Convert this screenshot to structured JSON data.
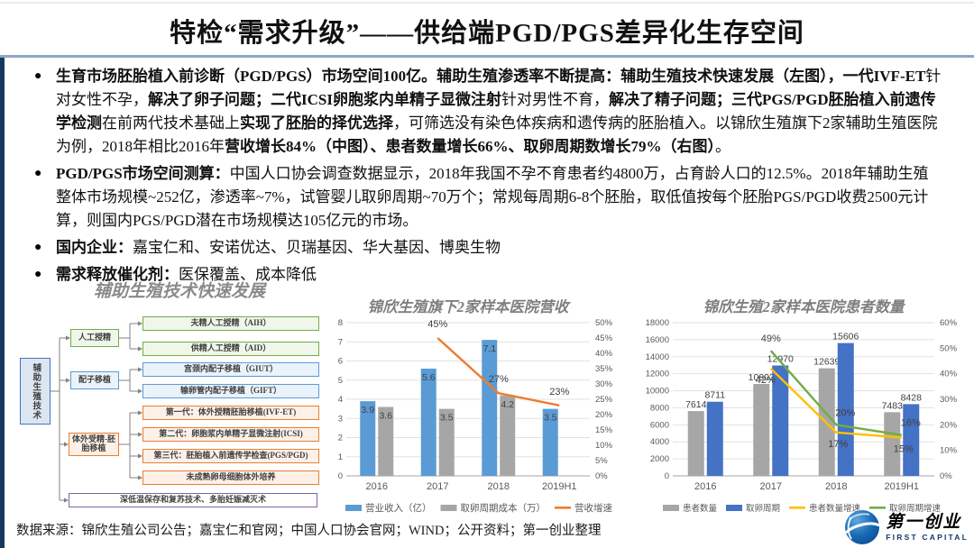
{
  "slide": {
    "title": "特检“需求升级”——供给端PGD/PGS差异化生存空间",
    "divider_color": "#8CA6C9",
    "sidebar_color": "#17375E"
  },
  "bullets": [
    {
      "segments": [
        {
          "t": "生育市场胚胎植入前诊断（PGD/PGS）市场空间100亿。辅助生殖渗透率不断提高：辅助生殖技术快速发展（左图），一代IVF-ET",
          "b": true
        },
        {
          "t": "针对女性不孕，",
          "b": false
        },
        {
          "t": "解决了卵子问题；二代ICSI卵胞浆内单精子显微注射",
          "b": true
        },
        {
          "t": "针对男性不育，",
          "b": false
        },
        {
          "t": "解决了精子问题；三代PGS/PGD胚胎植入前遗传学检测",
          "b": true
        },
        {
          "t": "在前两代技术基础上",
          "b": false
        },
        {
          "t": "实现了胚胎的择优选择",
          "b": true
        },
        {
          "t": "，可筛选没有染色体疾病和遗传病的胚胎植入。以锦欣生殖旗下2家辅助生殖医院为例，2018年相比2016年",
          "b": false
        },
        {
          "t": "营收增长84%（中图）、患者数量增长66%、取卵周期数增长79%（右图）",
          "b": true
        },
        {
          "t": "。",
          "b": false
        }
      ]
    },
    {
      "segments": [
        {
          "t": "PGD/PGS市场空间测算：",
          "b": true
        },
        {
          "t": "中国人口协会调查数据显示，2018年我国不孕不育患者约4800万，占育龄人口的12.5%。2018年辅助生殖整体市场规模~252亿，渗透率~7%，试管婴儿取卵周期~70万个；常规每周期6-8个胚胎，取低值按每个胚胎PGS/PGD收费2500元计算，则国内PGS/PGD潜在市场规模达105亿元的市场。",
          "b": false
        }
      ]
    },
    {
      "segments": [
        {
          "t": "国内企业：",
          "b": true
        },
        {
          "t": "嘉宝仁和、安诺优达、贝瑞基因、华大基因、博奥生物",
          "b": false
        }
      ]
    },
    {
      "segments": [
        {
          "t": "需求释放催化剂：",
          "b": true
        },
        {
          "t": "医保覆盖、成本降低",
          "b": false
        }
      ]
    }
  ],
  "diagram": {
    "title": "辅助生殖技术快速发展",
    "root": "辅助生殖技术",
    "branches": [
      {
        "label": "人工授精",
        "color": "green",
        "children": [
          "夫精人工授精（AIH）",
          "供精人工授精（AID）"
        ]
      },
      {
        "label": "配子移植",
        "color": "blue",
        "children": [
          "宫颈内配子移植（GIUT）",
          "输卵管内配子移植（GIFT）"
        ]
      },
      {
        "label": "体外受精-胚胎移植",
        "color": "orange",
        "children": [
          "第一代：体外授精胚胎移植(IVF-ET)",
          "第二代：卵胞浆内单精子显微注射(ICSI)",
          "第三代：胚胎植入前遗传学检查(PGS/PGD)",
          "未成熟卵母细胞体外培养"
        ]
      }
    ],
    "bottom": "深低温保存和复苏技术、多胎妊娠减灭术"
  },
  "chart_data": [
    {
      "type": "bar",
      "title": "锦欣生殖旗下2家样本医院营收",
      "categories": [
        "2016",
        "2017",
        "2018",
        "2019H1"
      ],
      "bar_series": [
        {
          "name": "营业收入（亿）",
          "color": "#5B9BD5",
          "values": [
            3.9,
            5.6,
            7.1,
            3.5
          ]
        },
        {
          "name": "取卵周期成本（万）",
          "color": "#A6A6A6",
          "values": [
            3.6,
            3.5,
            4.2,
            null
          ]
        }
      ],
      "line_series": [
        {
          "name": "营收增速",
          "color": "#ED7D31",
          "values": [
            null,
            45,
            27,
            23
          ]
        }
      ],
      "y_left": {
        "min": 0,
        "max": 8,
        "step": 1
      },
      "y_right": {
        "min": 0,
        "max": 50,
        "step": 5,
        "suffix": "%"
      },
      "grid": true,
      "legend_position": "bottom"
    },
    {
      "type": "bar",
      "title": "锦欣生殖2家样本医院患者数量",
      "categories": [
        "2016",
        "2017",
        "2018",
        "2019H1"
      ],
      "bar_series": [
        {
          "name": "患者数量",
          "color": "#A6A6A6",
          "values": [
            7614,
            10803,
            12639,
            7483
          ]
        },
        {
          "name": "取卵周期",
          "color": "#4472C4",
          "values": [
            8711,
            12970,
            15606,
            8428
          ]
        }
      ],
      "line_series": [
        {
          "name": "患者数量增速",
          "color": "#FFC000",
          "values": [
            null,
            42,
            17,
            15
          ]
        },
        {
          "name": "取卵周期增速",
          "color": "#70AD47",
          "values": [
            null,
            49,
            20,
            16
          ]
        }
      ],
      "y_left": {
        "min": 0,
        "max": 18000,
        "step": 2000
      },
      "y_right": {
        "min": 0,
        "max": 60,
        "step": 10,
        "suffix": "%"
      },
      "grid": true,
      "legend_position": "bottom"
    }
  ],
  "footer": {
    "source": "数据来源：锦欣生殖公司公告；嘉宝仁和官网；中国人口协会官网；WIND；公开资料；第一创业整理"
  },
  "logo": {
    "icon": "globe-icon",
    "cn": "第一创业",
    "en": "FIRST CAPITAL"
  }
}
